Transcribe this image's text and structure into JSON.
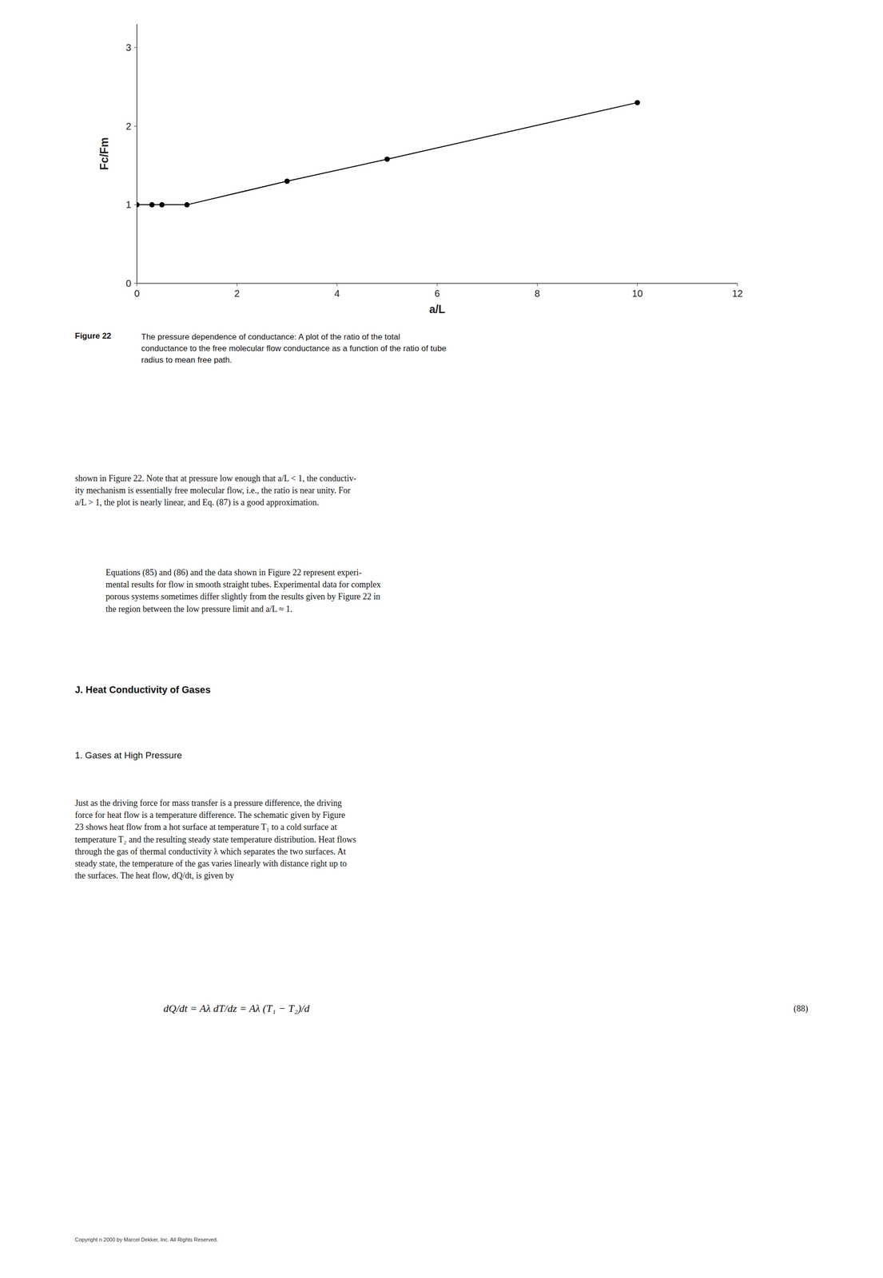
{
  "chart_data": {
    "type": "line",
    "x": [
      0.0,
      0.3,
      0.5,
      1.0,
      3.0,
      5.0,
      10.0
    ],
    "series": [
      {
        "values": [
          1.0,
          1.0,
          1.0,
          1.0,
          1.3,
          1.58,
          2.3
        ],
        "color": "#000000",
        "marker": "circle",
        "line_style": "solid"
      }
    ],
    "xlim": [
      0,
      12
    ],
    "ylim": [
      0,
      3.3
    ],
    "xticks": [
      0,
      2,
      4,
      6,
      8,
      10,
      12
    ],
    "yticks": [
      0,
      1,
      2,
      3
    ],
    "xlabel": "a/L",
    "ylabel": "Fc/Fm",
    "grid": false,
    "annotations": [
      "Figure 22",
      "The pressure dependence of conductance: A plot of the ratio of the total\nconductance to the free molecular flow conductance as a function of the ratio of tube\nradius to mean free path.",
      "shown in Figure 22. Note that at pressure low enough that a/L < 1, the conductiv-\nity mechanism is essentially free molecular flow, i.e., the ratio is near unity. For\na/L > 1, the plot is nearly linear, and Eq. (87) is a good approximation.",
      "Equations (85) and (86) and the data shown in Figure 22 represent experi-\nmental results for flow in smooth straight tubes. Experimental data for complex\nporous systems sometimes differ slightly from the results given by Figure 22 in\nthe region between the low pressure limit and a/L ≈ 1.",
      "J.   Heat Conductivity of Gases",
      "1.   Gases at High Pressure",
      "Just as the driving force for mass transfer is a pressure difference, the driving\nforce for heat flow is a temperature difference. The schematic given by Figure\n23 shows heat flow from a hot surface at temperature T₁ to a cold surface at\ntemperature T₂ and the resulting steady state temperature distribution. Heat flows\nthrough the gas of thermal conductivity λ which separates the two surfaces. At\nsteady state, the temperature of the gas varies linearly with distance right up to\nthe surfaces. The heat flow, dQ/dt, is given by",
      "dQ/dt = Aλ dT/dz = Aλ (T₁ − T₂)/d",
      "(88)",
      "Copyright n 2000 by Marcel Dekker, Inc. All Rights Reserved."
    ]
  }
}
